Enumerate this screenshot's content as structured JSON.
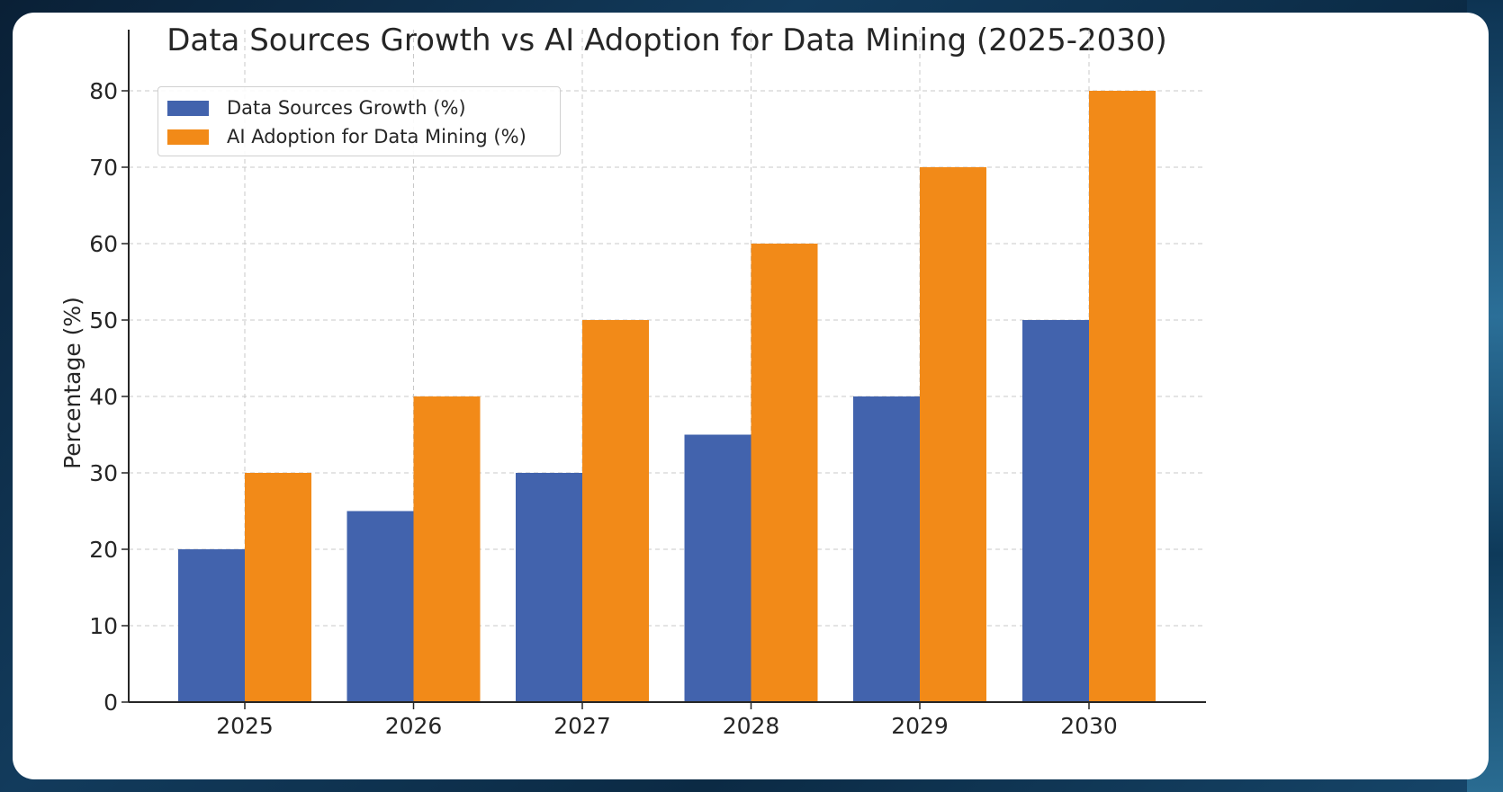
{
  "chart_data": {
    "type": "bar",
    "title": "Data Sources Growth vs AI Adoption for Data Mining (2025-2030)",
    "xlabel": "",
    "ylabel": "Percentage (%)",
    "categories": [
      "2025",
      "2026",
      "2027",
      "2028",
      "2029",
      "2030"
    ],
    "series": [
      {
        "name": "Data Sources Growth (%)",
        "color": "#4263ad",
        "values": [
          20,
          25,
          30,
          35,
          40,
          50
        ]
      },
      {
        "name": "AI Adoption for Data Mining (%)",
        "color": "#f28a18",
        "values": [
          30,
          40,
          50,
          60,
          70,
          80
        ]
      }
    ],
    "ylim": [
      0,
      84
    ],
    "yticks": [
      0,
      10,
      20,
      30,
      40,
      50,
      60,
      70,
      80
    ],
    "grid": true,
    "legend_position": "top-left"
  }
}
